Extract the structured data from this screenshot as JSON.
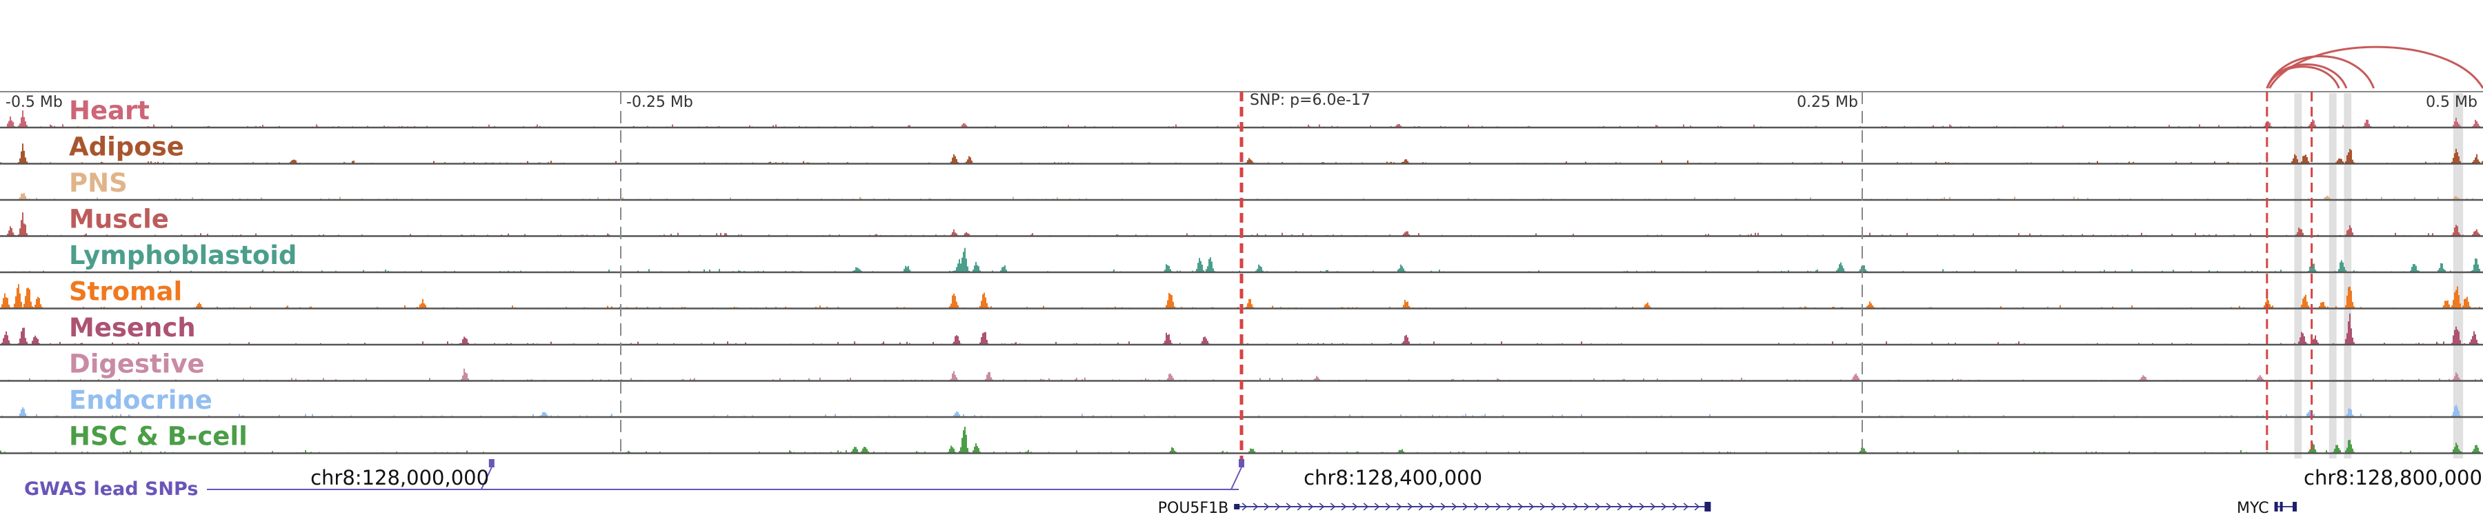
{
  "chart_data": {
    "type": "area",
    "title": "",
    "xlabel": "",
    "ylabel": "",
    "xlim": [
      -0.5,
      0.5
    ],
    "x_units": "Mb relative to GWAS lead SNP",
    "top_axis": {
      "ticks": [
        {
          "x": -0.5,
          "label": "-0.5 Mb"
        },
        {
          "x": -0.25,
          "label": "-0.25 Mb"
        },
        {
          "x": 0.25,
          "label": "0.25 Mb"
        },
        {
          "x": 0.5,
          "label": "0.5 Mb"
        }
      ]
    },
    "snp": {
      "x": 0.0,
      "label": "SNP: p=6.0e-17"
    },
    "genomic_ticks": [
      {
        "x": -0.339,
        "label": "chr8:128,000,000"
      },
      {
        "x": 0.061,
        "label": "chr8:128,400,000"
      },
      {
        "x": 0.461,
        "label": "chr8:128,800,000"
      }
    ],
    "highlight_regions": [
      [
        0.424,
        0.427
      ],
      [
        0.438,
        0.441
      ],
      [
        0.444,
        0.447
      ],
      [
        0.488,
        0.492
      ]
    ],
    "red_marks": [
      0.413,
      0.431
    ],
    "series": [
      {
        "name": "Heart",
        "color": "#cc6677",
        "peaks": [
          [
            -0.496,
            0.35
          ],
          [
            -0.491,
            0.55
          ],
          [
            -0.112,
            0.15
          ],
          [
            0.063,
            0.12
          ],
          [
            0.413,
            0.25
          ],
          [
            0.431,
            0.3
          ],
          [
            0.453,
            0.25
          ],
          [
            0.489,
            0.3
          ],
          [
            0.497,
            0.25
          ]
        ]
      },
      {
        "name": "Adipose",
        "color": "#a8552e",
        "peaks": [
          [
            -0.491,
            0.6
          ],
          [
            -0.382,
            0.2
          ],
          [
            -0.116,
            0.3
          ],
          [
            -0.11,
            0.25
          ],
          [
            0.003,
            0.2
          ],
          [
            0.066,
            0.15
          ],
          [
            0.424,
            0.3
          ],
          [
            0.428,
            0.35
          ],
          [
            0.442,
            0.25
          ],
          [
            0.446,
            0.55
          ],
          [
            0.489,
            0.55
          ],
          [
            0.497,
            0.3
          ]
        ]
      },
      {
        "name": "PNS",
        "color": "#e0b48a",
        "peaks": [
          [
            -0.491,
            0.3
          ],
          [
            0.437,
            0.15
          ],
          [
            0.489,
            0.15
          ]
        ]
      },
      {
        "name": "Muscle",
        "color": "#bd5b5b",
        "peaks": [
          [
            -0.491,
            0.7
          ],
          [
            -0.496,
            0.3
          ],
          [
            -0.116,
            0.2
          ],
          [
            -0.111,
            0.15
          ],
          [
            0.066,
            0.2
          ],
          [
            0.426,
            0.3
          ],
          [
            0.446,
            0.35
          ],
          [
            0.489,
            0.35
          ],
          [
            0.497,
            0.25
          ]
        ]
      },
      {
        "name": "Lymphoblastoid",
        "color": "#4b9e8c",
        "peaks": [
          [
            -0.155,
            0.2
          ],
          [
            -0.135,
            0.25
          ],
          [
            -0.114,
            0.4
          ],
          [
            -0.112,
            0.8
          ],
          [
            -0.107,
            0.35
          ],
          [
            -0.096,
            0.25
          ],
          [
            -0.03,
            0.3
          ],
          [
            -0.017,
            0.45
          ],
          [
            -0.013,
            0.5
          ],
          [
            0.007,
            0.25
          ],
          [
            0.064,
            0.25
          ],
          [
            0.241,
            0.35
          ],
          [
            0.25,
            0.3
          ],
          [
            0.431,
            0.35
          ],
          [
            0.443,
            0.45
          ],
          [
            0.472,
            0.3
          ],
          [
            0.483,
            0.3
          ],
          [
            0.497,
            0.45
          ]
        ]
      },
      {
        "name": "Stromal",
        "color": "#f0781e",
        "peaks": [
          [
            -0.498,
            0.55
          ],
          [
            -0.493,
            0.75
          ],
          [
            -0.489,
            0.95
          ],
          [
            -0.485,
            0.4
          ],
          [
            -0.42,
            0.2
          ],
          [
            -0.33,
            0.3
          ],
          [
            -0.116,
            0.65
          ],
          [
            -0.104,
            0.5
          ],
          [
            -0.029,
            0.6
          ],
          [
            0.003,
            0.3
          ],
          [
            0.066,
            0.3
          ],
          [
            0.163,
            0.2
          ],
          [
            0.253,
            0.25
          ],
          [
            0.413,
            0.35
          ],
          [
            0.428,
            0.45
          ],
          [
            0.435,
            0.25
          ],
          [
            0.446,
            0.85
          ],
          [
            0.485,
            0.3
          ],
          [
            0.489,
            0.9
          ],
          [
            0.493,
            0.45
          ]
        ]
      },
      {
        "name": "Mesench",
        "color": "#ad5272",
        "peaks": [
          [
            -0.498,
            0.45
          ],
          [
            -0.491,
            0.6
          ],
          [
            -0.486,
            0.35
          ],
          [
            -0.313,
            0.3
          ],
          [
            -0.115,
            0.35
          ],
          [
            -0.104,
            0.55
          ],
          [
            -0.03,
            0.45
          ],
          [
            -0.015,
            0.35
          ],
          [
            0.066,
            0.3
          ],
          [
            0.427,
            0.45
          ],
          [
            0.432,
            0.3
          ],
          [
            0.446,
            0.95
          ],
          [
            0.489,
            0.8
          ],
          [
            0.496,
            0.45
          ]
        ]
      },
      {
        "name": "Digestive",
        "color": "#c98aa4",
        "peaks": [
          [
            -0.313,
            0.4
          ],
          [
            -0.116,
            0.3
          ],
          [
            -0.102,
            0.3
          ],
          [
            -0.029,
            0.25
          ],
          [
            0.03,
            0.15
          ],
          [
            0.247,
            0.3
          ],
          [
            0.363,
            0.2
          ],
          [
            0.41,
            0.2
          ],
          [
            0.489,
            0.25
          ]
        ]
      },
      {
        "name": "Endocrine",
        "color": "#93bef0",
        "peaks": [
          [
            -0.491,
            0.35
          ],
          [
            -0.281,
            0.2
          ],
          [
            -0.115,
            0.2
          ],
          [
            0.43,
            0.25
          ],
          [
            0.446,
            0.3
          ],
          [
            0.489,
            0.45
          ]
        ]
      },
      {
        "name": "HSC & B-cell",
        "color": "#4b9e46",
        "peaks": [
          [
            -0.156,
            0.25
          ],
          [
            -0.152,
            0.3
          ],
          [
            -0.117,
            0.25
          ],
          [
            -0.112,
            0.95
          ],
          [
            -0.107,
            0.3
          ],
          [
            -0.028,
            0.2
          ],
          [
            0.004,
            0.2
          ],
          [
            0.064,
            0.15
          ],
          [
            0.25,
            0.2
          ],
          [
            0.431,
            0.35
          ],
          [
            0.441,
            0.3
          ],
          [
            0.446,
            0.5
          ],
          [
            0.489,
            0.4
          ],
          [
            0.497,
            0.3
          ]
        ]
      }
    ],
    "gwas": {
      "label": "GWAS lead SNPs",
      "color": "#6a55b8",
      "snps": [
        -0.302,
        0.0
      ]
    },
    "genes": [
      {
        "name": "POU5F1B",
        "start": -0.003,
        "end": 0.189
      },
      {
        "name": "MYC",
        "start": 0.416,
        "end": 0.425
      }
    ],
    "loops": [
      {
        "from": 0.413,
        "to": 0.445
      },
      {
        "from": 0.413,
        "to": 0.442
      },
      {
        "from": 0.413,
        "to": 0.456
      },
      {
        "from": 0.414,
        "to": 0.5
      }
    ],
    "loop_color": "#c75a5a"
  }
}
